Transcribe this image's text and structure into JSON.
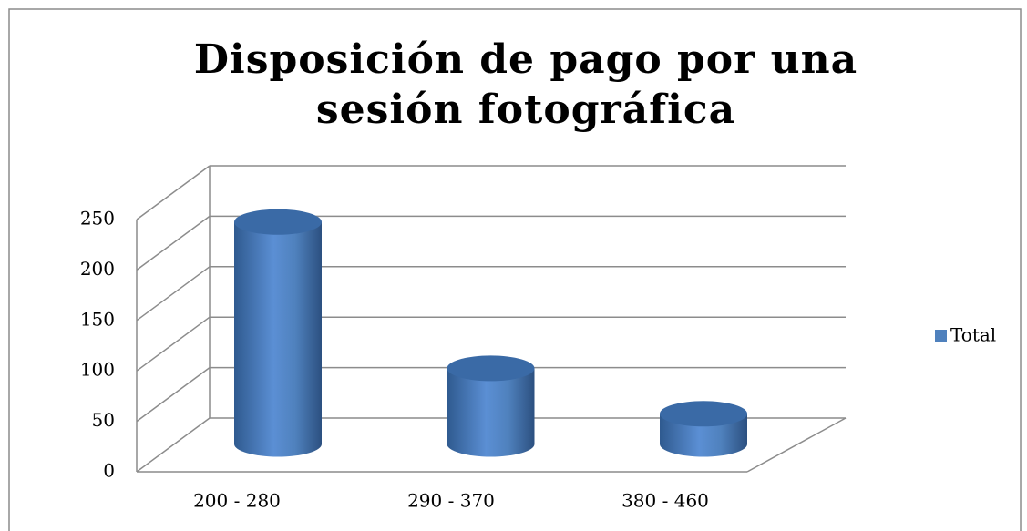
{
  "chart_data": {
    "type": "bar3d",
    "title": "Disposición de pago por una sesión fotográfica",
    "categories": [
      "200 - 280",
      "290 - 370",
      "380 - 460"
    ],
    "series": [
      {
        "name": "Total",
        "color": "#4f81bd",
        "values": [
          220,
          75,
          30
        ]
      }
    ],
    "ylim": [
      0,
      250
    ],
    "yticks": [
      0,
      50,
      100,
      150,
      200,
      250
    ],
    "grid": true,
    "legend": "right"
  }
}
